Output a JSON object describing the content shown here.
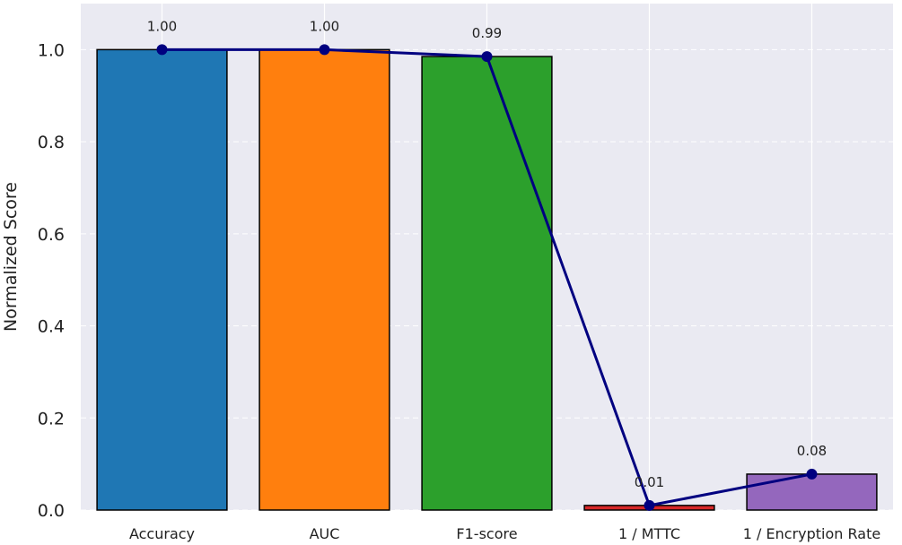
{
  "chart_data": {
    "type": "bar",
    "categories": [
      "Accuracy",
      "AUC",
      "F1-score",
      "1 / MTTC",
      "1 / Encryption Rate"
    ],
    "values": [
      1.0,
      1.0,
      0.985,
      0.01,
      0.078
    ],
    "data_labels": [
      "1.00",
      "1.00",
      "0.99",
      "0.01",
      "0.08"
    ],
    "bar_colors": [
      "#1f77b4",
      "#ff7f0e",
      "#2ca02c",
      "#d62728",
      "#9467bd"
    ],
    "line_color": "#000080",
    "overlay_line": true,
    "xlabel": "",
    "ylabel": "Normalized Score",
    "ylim": [
      0,
      1.0
    ],
    "yticks": [
      "0.0",
      "0.2",
      "0.4",
      "0.6",
      "0.8",
      "1.0"
    ],
    "grid": true,
    "background": "#eaeaf2"
  }
}
